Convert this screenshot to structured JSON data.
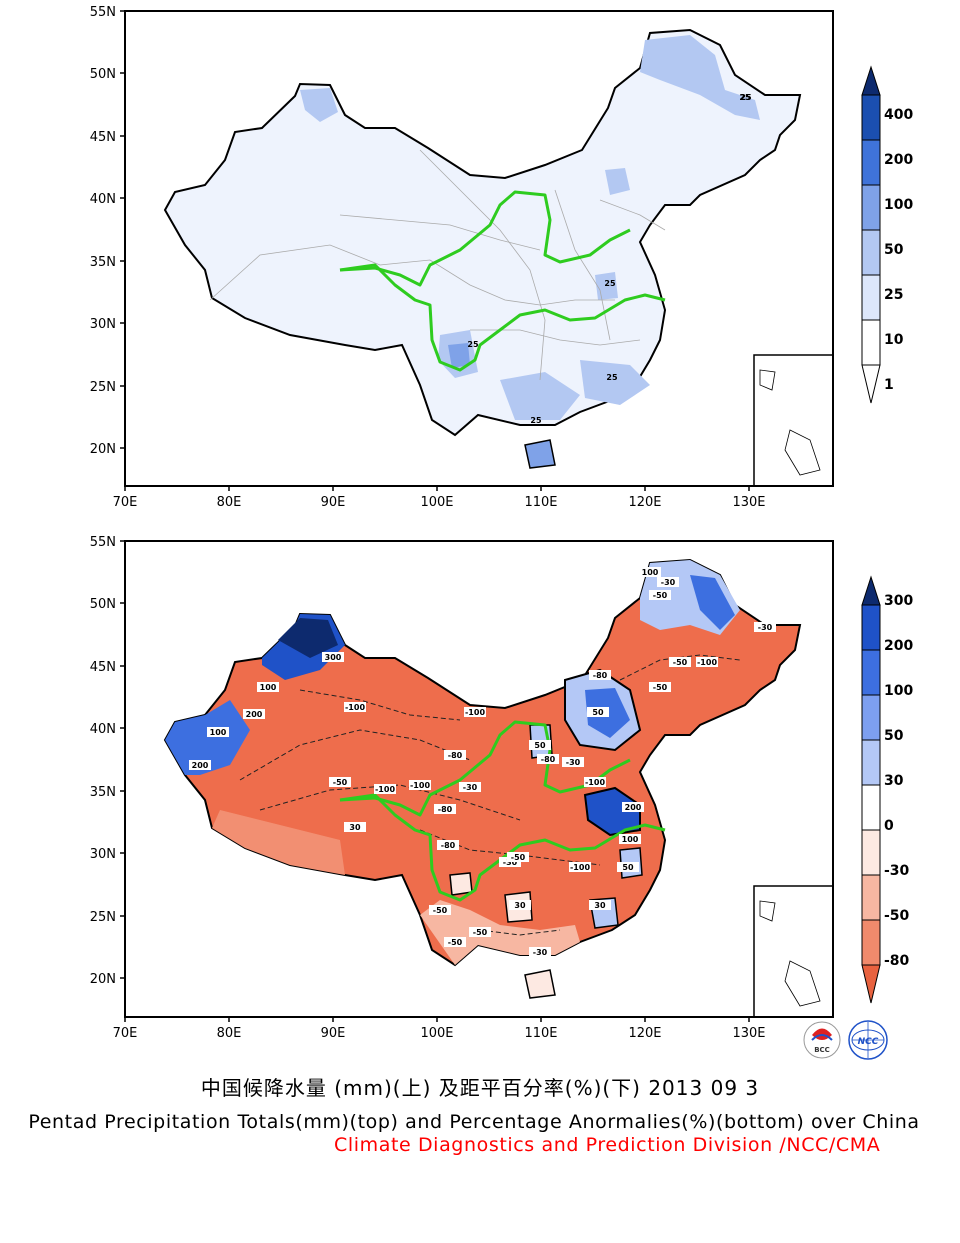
{
  "maps": [
    {
      "id": "top",
      "lat_labels": [
        "55N",
        "50N",
        "45N",
        "40N",
        "35N",
        "30N",
        "25N",
        "20N"
      ],
      "lon_labels": [
        "70E",
        "80E",
        "90E",
        "100E",
        "110E",
        "120E",
        "130E"
      ],
      "contour_labels": [
        "25",
        "25",
        "25",
        "25",
        "25",
        "25"
      ],
      "colorbar": {
        "labels": [
          "400",
          "200",
          "100",
          "50",
          "25",
          "10",
          "1"
        ],
        "colors": [
          "#0d2a6e",
          "#1b4fb0",
          "#3f73d9",
          "#7fa2e8",
          "#b3c8f2",
          "#dde7fb",
          "#ffffff"
        ]
      }
    },
    {
      "id": "bottom",
      "lat_labels": [
        "55N",
        "50N",
        "45N",
        "40N",
        "35N",
        "30N",
        "25N",
        "20N"
      ],
      "lon_labels": [
        "70E",
        "80E",
        "90E",
        "100E",
        "110E",
        "120E",
        "130E"
      ],
      "contour_labels": [
        "300",
        "100",
        "200",
        "100",
        "200",
        "100",
        "-30",
        "-50",
        "-100",
        "-50",
        "-30",
        "-80",
        "-50",
        "-100",
        "-100",
        "-80",
        "-100",
        "-50",
        "50",
        "-80",
        "50",
        "-30",
        "-100",
        "-100",
        "-80",
        "200",
        "100",
        "50",
        "-30",
        "-50",
        "30",
        "30",
        "-50",
        "-50",
        "-50",
        "-30",
        "-100",
        "30",
        "-80",
        "-30"
      ],
      "colorbar": {
        "labels": [
          "300",
          "200",
          "100",
          "50",
          "30",
          "0",
          "-30",
          "-50",
          "-80"
        ],
        "colors": [
          "#0d2a6e",
          "#1f52c8",
          "#3d6fe0",
          "#7d9ff0",
          "#b4c8f6",
          "#ffffff",
          "#fde9e2",
          "#f7b7a2",
          "#f08a6c",
          "#e8623f"
        ]
      }
    }
  ],
  "caption_cn": "中国候降水量 (mm)(上) 及距平百分率(%)(下) 2013 09 3",
  "caption_en": "Pentad Precipitation Totals(mm)(top) and Percentage Anormalies(%)(bottom) over China",
  "caption_org": "Climate Diagnostics and Prediction Division /NCC/CMA",
  "logos": [
    "BCC",
    "NCC"
  ]
}
